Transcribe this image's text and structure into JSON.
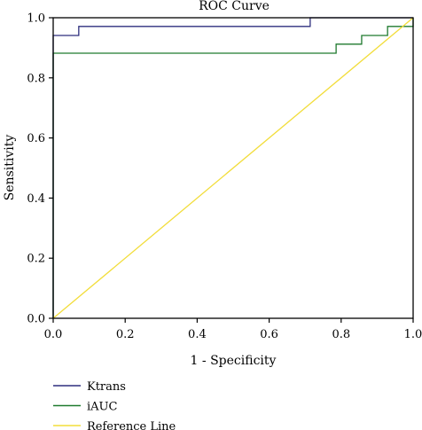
{
  "chart_data": {
    "type": "line",
    "title": "ROC Curve",
    "xlabel": "1 - Specificity",
    "ylabel": "Sensitivity",
    "xlim": [
      0,
      1
    ],
    "ylim": [
      0,
      1
    ],
    "x_ticks": [
      "0.0",
      "0.2",
      "0.4",
      "0.6",
      "0.8",
      "1.0"
    ],
    "y_ticks": [
      "0.0",
      "0.2",
      "0.4",
      "0.6",
      "0.8",
      "1.0"
    ],
    "grid": false,
    "legend_position": "bottom-left",
    "series": [
      {
        "name": "Ktrans",
        "color": "#2e2f7e",
        "step": true,
        "points": [
          [
            0,
            0
          ],
          [
            0,
            0.941
          ],
          [
            0.071,
            0.941
          ],
          [
            0.071,
            0.971
          ],
          [
            0.714,
            0.971
          ],
          [
            0.714,
            1.0
          ],
          [
            1.0,
            1.0
          ]
        ]
      },
      {
        "name": "iAUC",
        "color": "#1f7a2e",
        "step": true,
        "points": [
          [
            0,
            0
          ],
          [
            0,
            0.882
          ],
          [
            0.786,
            0.882
          ],
          [
            0.786,
            0.912
          ],
          [
            0.857,
            0.912
          ],
          [
            0.857,
            0.941
          ],
          [
            0.929,
            0.941
          ],
          [
            0.929,
            0.971
          ],
          [
            1.0,
            0.971
          ],
          [
            1.0,
            1.0
          ]
        ]
      },
      {
        "name": "Reference Line",
        "color": "#f2dd3a",
        "step": false,
        "points": [
          [
            0,
            0
          ],
          [
            1,
            1
          ]
        ]
      }
    ]
  }
}
